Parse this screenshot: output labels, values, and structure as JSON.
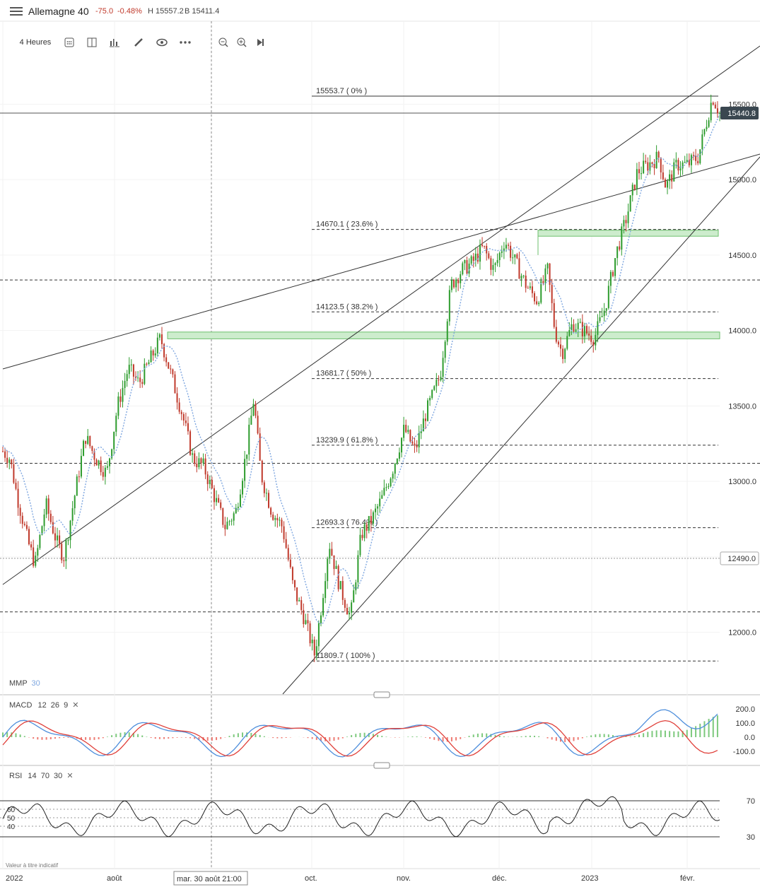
{
  "header": {
    "instrument": "Allemagne 40",
    "change": "-75.0",
    "change_pct": "-0.48%",
    "high": "H 15557.2",
    "bid": "B 15411.4"
  },
  "toolbar": {
    "timeframe": "4 Heures"
  },
  "colors": {
    "up": "#2e9c2e",
    "down": "#c0392b",
    "ma": "#7fa7e0",
    "zone": "#cdeccd",
    "zone_border": "#6dbf6d",
    "rsi_over": "#d0342c",
    "rsi_under": "#2e9c2e"
  },
  "chart_data": {
    "type": "candlestick",
    "price_axis": {
      "ticks": [
        15500.0,
        15000.0,
        14500.0,
        14000.0,
        13500.0,
        13000.0,
        12500.0,
        12000.0
      ],
      "range": [
        11600,
        16050
      ]
    },
    "last_price": "15440.8",
    "marked_price": "12490.0",
    "x_axis": {
      "labels": [
        "2022",
        "août",
        "oct.",
        "nov.",
        "déc.",
        "2023",
        "févr."
      ],
      "crosshair_label": "mar. 30 août 21:00"
    },
    "fibonacci": [
      {
        "label": "15553.7 ( 0% )",
        "price": 15553.7
      },
      {
        "label": "14670.1 ( 23.6% )",
        "price": 14670.1
      },
      {
        "label": "14123.5 ( 38.2% )",
        "price": 14123.5
      },
      {
        "label": "13681.7 ( 50% )",
        "price": 13681.7
      },
      {
        "label": "13239.9 ( 61.8% )",
        "price": 13239.9
      },
      {
        "label": "12693.3 ( 76.4% )",
        "price": 12693.3
      },
      {
        "label": "11809.7 ( 100% )",
        "price": 11809.7
      }
    ],
    "price_path": [
      [
        0,
        13200
      ],
      [
        0.01,
        13150
      ],
      [
        0.02,
        12900
      ],
      [
        0.035,
        12600
      ],
      [
        0.045,
        12450
      ],
      [
        0.06,
        12850
      ],
      [
        0.075,
        12600
      ],
      [
        0.085,
        12500
      ],
      [
        0.1,
        12900
      ],
      [
        0.115,
        13300
      ],
      [
        0.13,
        13150
      ],
      [
        0.145,
        13050
      ],
      [
        0.16,
        13500
      ],
      [
        0.175,
        13750
      ],
      [
        0.19,
        13650
      ],
      [
        0.205,
        13800
      ],
      [
        0.22,
        13950
      ],
      [
        0.235,
        13700
      ],
      [
        0.25,
        13450
      ],
      [
        0.265,
        13150
      ],
      [
        0.28,
        13100
      ],
      [
        0.295,
        12900
      ],
      [
        0.31,
        12700
      ],
      [
        0.325,
        12800
      ],
      [
        0.34,
        13200
      ],
      [
        0.35,
        13550
      ],
      [
        0.36,
        13050
      ],
      [
        0.375,
        12800
      ],
      [
        0.39,
        12700
      ],
      [
        0.405,
        12300
      ],
      [
        0.42,
        12100
      ],
      [
        0.435,
        11850
      ],
      [
        0.445,
        12200
      ],
      [
        0.455,
        12600
      ],
      [
        0.47,
        12300
      ],
      [
        0.485,
        12100
      ],
      [
        0.5,
        12650
      ],
      [
        0.515,
        12750
      ],
      [
        0.53,
        12900
      ],
      [
        0.545,
        13100
      ],
      [
        0.56,
        13350
      ],
      [
        0.575,
        13200
      ],
      [
        0.59,
        13450
      ],
      [
        0.61,
        13700
      ],
      [
        0.625,
        14300
      ],
      [
        0.64,
        14400
      ],
      [
        0.655,
        14450
      ],
      [
        0.67,
        14550
      ],
      [
        0.685,
        14400
      ],
      [
        0.7,
        14600
      ],
      [
        0.715,
        14450
      ],
      [
        0.73,
        14300
      ],
      [
        0.745,
        14200
      ],
      [
        0.76,
        14400
      ],
      [
        0.77,
        14000
      ],
      [
        0.78,
        13850
      ],
      [
        0.795,
        14050
      ],
      [
        0.81,
        14000
      ],
      [
        0.825,
        13950
      ],
      [
        0.84,
        14150
      ],
      [
        0.855,
        14500
      ],
      [
        0.87,
        14750
      ],
      [
        0.885,
        15050
      ],
      [
        0.9,
        15100
      ],
      [
        0.915,
        15150
      ],
      [
        0.925,
        14950
      ],
      [
        0.94,
        15100
      ],
      [
        0.955,
        15100
      ],
      [
        0.97,
        15150
      ],
      [
        0.98,
        15350
      ],
      [
        0.99,
        15550
      ],
      [
        1.0,
        15440
      ]
    ],
    "ma_label": "MMP",
    "ma_period": "30",
    "macd": {
      "label": "MACD",
      "params": [
        "12",
        "26",
        "9"
      ],
      "ticks": [
        "200.0",
        "100.0",
        "0.0",
        "-100.0"
      ]
    },
    "rsi": {
      "label": "RSI",
      "params": [
        "14",
        "70",
        "30"
      ],
      "ticks_right": [
        "70",
        "30"
      ],
      "ticks_left": [
        "60",
        "50",
        "40"
      ]
    },
    "footnote": "Valeur à titre indicatif"
  }
}
